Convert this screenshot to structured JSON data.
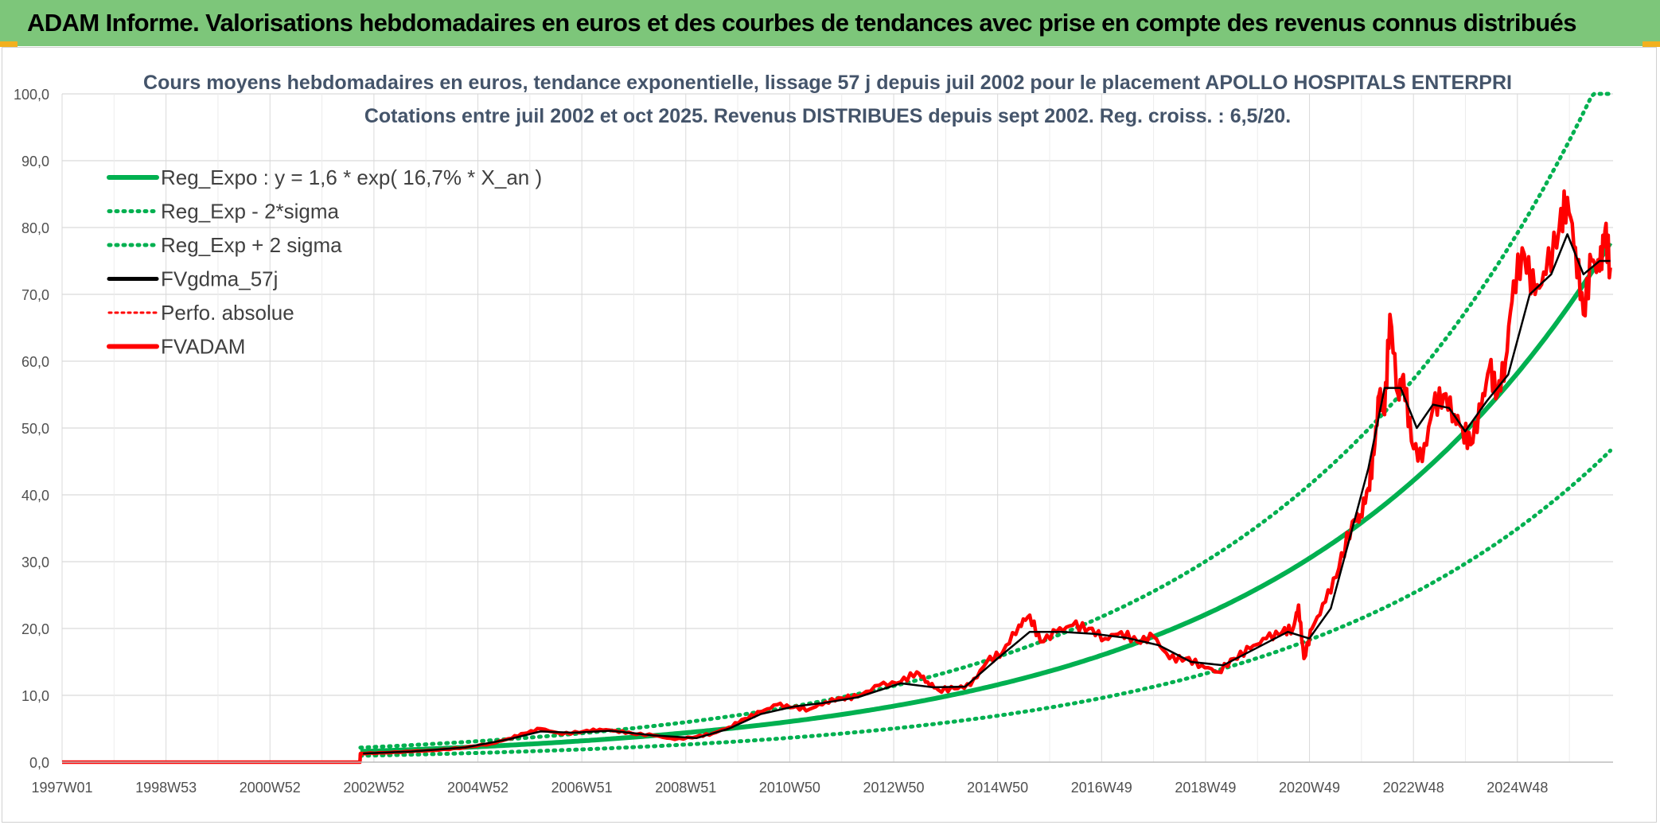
{
  "header": {
    "title": "ADAM Informe. Valorisations hebdomadaires en euros et des courbes de tendances avec prise en compte des revenus connus distribués"
  },
  "colors": {
    "header_bg": "#7dc67a",
    "green": "#00b050",
    "red": "#ff0000",
    "black": "#000000",
    "grid": "#d9d9d9",
    "title_text": "#44546a"
  },
  "chart_data": {
    "type": "line",
    "title_line1": "Cours moyens hebdomadaires en euros, tendance exponentielle, lissage 57 j depuis juil 2002 pour le placement APOLLO HOSPITALS ENTERPRI",
    "title_line2": "Cotations entre juil 2002 et oct 2025. Revenus DISTRIBUES depuis sept 2002. Reg. croiss. : 6,5/20.",
    "x_ticks": [
      "1997W01",
      "1998W53",
      "2000W52",
      "2002W52",
      "2004W52",
      "2006W51",
      "2008W51",
      "2010W50",
      "2012W50",
      "2014W50",
      "2016W49",
      "2018W49",
      "2020W49",
      "2022W48",
      "2024W48"
    ],
    "x_range": [
      1997.0,
      2025.85
    ],
    "ylim": [
      0,
      100
    ],
    "y_ticks": [
      "0,0",
      "10,0",
      "20,0",
      "30,0",
      "40,0",
      "50,0",
      "60,0",
      "70,0",
      "80,0",
      "90,0",
      "100,0"
    ],
    "grid": true,
    "legend_position": "top-left",
    "legend": [
      {
        "key": "reg",
        "label": "Reg_Expo : y = 1,6 * exp( 16,7% *  X_an )"
      },
      {
        "key": "low",
        "label": "Reg_Exp - 2*sigma"
      },
      {
        "key": "high",
        "label": "Reg_Exp + 2 sigma"
      },
      {
        "key": "ma",
        "label": "FVgdma_57j"
      },
      {
        "key": "perf",
        "label": "Perfo. absolue"
      },
      {
        "key": "fv",
        "label": "FVADAM"
      }
    ],
    "regression": {
      "a": 1.6,
      "b": 0.167,
      "start_year": 2002.55,
      "end_year": 2025.8
    },
    "sigma_bands": {
      "upper_factor": 1.36,
      "lower_factor": 0.6,
      "cap": 100
    },
    "series": [
      {
        "name": "FVADAM",
        "x": [
          1997.0,
          2002.54,
          2002.55,
          2003.0,
          2003.5,
          2004.0,
          2004.5,
          2005.0,
          2005.3,
          2005.6,
          2005.9,
          2006.3,
          2006.7,
          2007.0,
          2007.3,
          2007.6,
          2008.0,
          2008.4,
          2008.8,
          2009.1,
          2009.4,
          2009.7,
          2010.0,
          2010.3,
          2010.6,
          2010.9,
          2011.2,
          2011.5,
          2011.8,
          2012.2,
          2012.6,
          2012.9,
          2013.1,
          2013.3,
          2013.6,
          2013.9,
          2014.2,
          2014.5,
          2014.8,
          2015.0,
          2015.2,
          2015.5,
          2015.8,
          2016.1,
          2016.4,
          2016.7,
          2017.0,
          2017.3,
          2017.6,
          2017.9,
          2018.2,
          2018.5,
          2018.8,
          2019.1,
          2019.4,
          2019.7,
          2019.9,
          2020.0,
          2020.1,
          2020.25,
          2020.5,
          2020.75,
          2021.0,
          2021.15,
          2021.3,
          2021.4,
          2021.5,
          2021.6,
          2021.7,
          2021.85,
          2021.95,
          2022.1,
          2022.3,
          2022.5,
          2022.7,
          2022.9,
          2023.05,
          2023.2,
          2023.4,
          2023.55,
          2023.7,
          2023.85,
          2024.0,
          2024.2,
          2024.4,
          2024.6,
          2024.85,
          2025.0,
          2025.15,
          2025.3,
          2025.45,
          2025.6,
          2025.7,
          2025.8
        ],
        "values": [
          0.0,
          0.0,
          1.3,
          1.4,
          1.6,
          1.8,
          2.2,
          2.8,
          3.5,
          4.3,
          5.0,
          4.2,
          4.6,
          4.9,
          4.7,
          4.3,
          4.0,
          3.4,
          3.8,
          4.3,
          5.2,
          6.5,
          7.5,
          8.6,
          8.2,
          7.9,
          9.0,
          9.6,
          9.8,
          11.5,
          12.0,
          13.5,
          12.0,
          10.8,
          11.0,
          11.5,
          15.0,
          16.5,
          20.5,
          22.0,
          18.0,
          19.5,
          20.5,
          20.0,
          18.5,
          19.5,
          18.0,
          18.8,
          15.5,
          15.5,
          14.5,
          13.5,
          15.5,
          17.0,
          18.5,
          19.5,
          20.0,
          23.5,
          15.5,
          20.0,
          24.0,
          29.0,
          36.0,
          37.0,
          41.0,
          46.0,
          55.0,
          52.0,
          67.0,
          55.0,
          58.0,
          48.0,
          45.0,
          53.0,
          55.0,
          52.0,
          50.0,
          47.5,
          53.0,
          59.0,
          55.0,
          60.0,
          72.0,
          76.0,
          70.0,
          73.0,
          80.0,
          84.5,
          77.0,
          67.0,
          75.0,
          73.5,
          79.5,
          74.0
        ]
      },
      {
        "name": "FVgdma_57j",
        "x": [
          2002.6,
          2003.5,
          2004.5,
          2005.3,
          2005.9,
          2006.5,
          2007.2,
          2008.0,
          2008.8,
          2009.4,
          2010.0,
          2010.6,
          2011.2,
          2011.8,
          2012.6,
          2013.2,
          2013.8,
          2014.4,
          2015.0,
          2015.6,
          2016.2,
          2016.8,
          2017.4,
          2018.0,
          2018.6,
          2019.2,
          2019.8,
          2020.2,
          2020.6,
          2021.0,
          2021.3,
          2021.6,
          2021.9,
          2022.2,
          2022.5,
          2022.8,
          2023.1,
          2023.5,
          2023.9,
          2024.3,
          2024.7,
          2025.0,
          2025.3,
          2025.6,
          2025.8
        ],
        "values": [
          1.3,
          1.6,
          2.2,
          3.4,
          4.6,
          4.4,
          4.7,
          4.0,
          3.6,
          5.0,
          7.2,
          8.3,
          8.9,
          9.7,
          11.8,
          11.2,
          11.3,
          15.5,
          19.5,
          19.5,
          19.2,
          18.6,
          17.5,
          15.0,
          14.5,
          17.0,
          19.5,
          18.5,
          23.0,
          35.0,
          44.0,
          56.0,
          56.0,
          50.0,
          53.5,
          53.0,
          49.5,
          54.0,
          58.0,
          70.0,
          73.0,
          79.0,
          73.0,
          75.0,
          75.0
        ]
      }
    ]
  }
}
